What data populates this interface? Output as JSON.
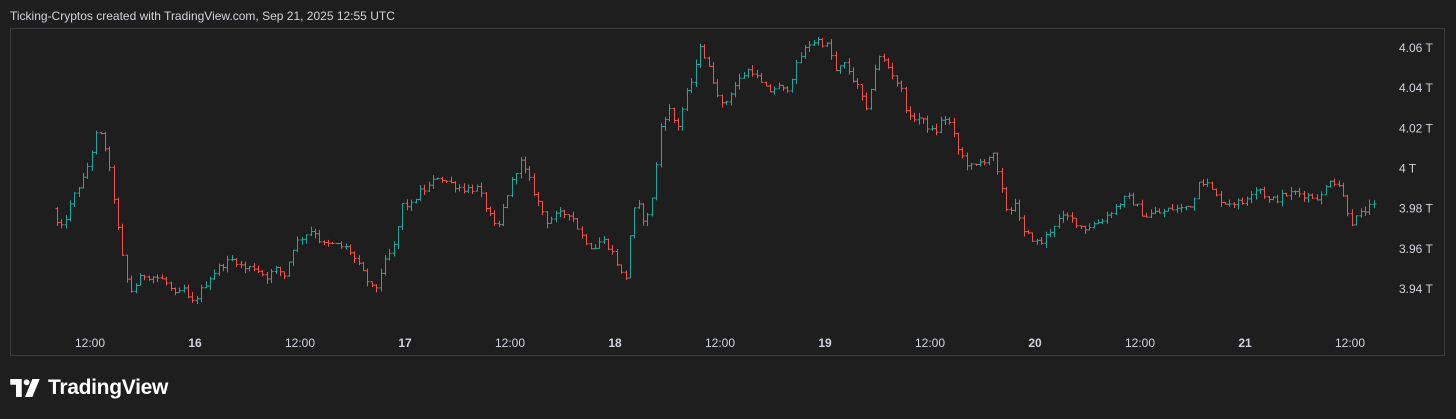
{
  "header": {
    "attribution": "Ticking-Cryptos created with TradingView.com, Sep 21, 2025 12:55 UTC"
  },
  "brand": {
    "name": "TradingView",
    "icon": "tradingview-logo-icon"
  },
  "colors": {
    "background": "#1e1e1e",
    "up": "#26a69a",
    "down": "#ef5350",
    "text": "#d1d4dc",
    "border": "#3a3a3a"
  },
  "chart_data": {
    "type": "ohlc",
    "unit": "T",
    "ylim": [
      3.925,
      4.07
    ],
    "y_ticks": [
      {
        "value": 4.06,
        "label": "4.06 T"
      },
      {
        "value": 4.04,
        "label": "4.04 T"
      },
      {
        "value": 4.02,
        "label": "4.02 T"
      },
      {
        "value": 4.0,
        "label": "4 T"
      },
      {
        "value": 3.98,
        "label": "3.98 T"
      },
      {
        "value": 3.96,
        "label": "3.96 T"
      },
      {
        "value": 3.94,
        "label": "3.94 T"
      }
    ],
    "x_start": "Sep 15 08:00",
    "x_end": "Sep 21 14:00",
    "x_ticks": [
      {
        "label": "12:00",
        "hours": 12,
        "bold": false
      },
      {
        "label": "16",
        "hours": 24,
        "bold": true
      },
      {
        "label": "12:00",
        "hours": 36,
        "bold": false
      },
      {
        "label": "17",
        "hours": 48,
        "bold": true
      },
      {
        "label": "12:00",
        "hours": 60,
        "bold": false
      },
      {
        "label": "18",
        "hours": 72,
        "bold": true
      },
      {
        "label": "12:00",
        "hours": 84,
        "bold": false
      },
      {
        "label": "19",
        "hours": 96,
        "bold": true
      },
      {
        "label": "12:00",
        "hours": 108,
        "bold": false
      },
      {
        "label": "20",
        "hours": 120,
        "bold": true
      },
      {
        "label": "12:00",
        "hours": 132,
        "bold": false
      },
      {
        "label": "21",
        "hours": 144,
        "bold": true
      },
      {
        "label": "12:00",
        "hours": 156,
        "bold": false
      }
    ],
    "bar_interval_hours": 0.5,
    "anchors": [
      [
        8.2,
        3.98
      ],
      [
        9.0,
        3.968
      ],
      [
        11.0,
        3.99
      ],
      [
        11.8,
        3.995
      ],
      [
        13.3,
        4.018
      ],
      [
        14.0,
        4.015
      ],
      [
        15.0,
        3.992
      ],
      [
        16.0,
        3.96
      ],
      [
        17.0,
        3.938
      ],
      [
        18.5,
        3.947
      ],
      [
        20.0,
        3.946
      ],
      [
        21.0,
        3.944
      ],
      [
        22.3,
        3.936
      ],
      [
        23.2,
        3.94
      ],
      [
        24.0,
        3.932
      ],
      [
        25.0,
        3.938
      ],
      [
        26.0,
        3.945
      ],
      [
        27.5,
        3.952
      ],
      [
        29.0,
        3.955
      ],
      [
        30.0,
        3.95
      ],
      [
        31.3,
        3.951
      ],
      [
        32.6,
        3.946
      ],
      [
        33.8,
        3.95
      ],
      [
        34.7,
        3.947
      ],
      [
        35.8,
        3.962
      ],
      [
        37.0,
        3.967
      ],
      [
        38.0,
        3.97
      ],
      [
        39.0,
        3.962
      ],
      [
        40.5,
        3.962
      ],
      [
        42.0,
        3.96
      ],
      [
        43.8,
        3.947
      ],
      [
        45.0,
        3.938
      ],
      [
        45.8,
        3.95
      ],
      [
        47.3,
        3.962
      ],
      [
        48.3,
        3.984
      ],
      [
        49.0,
        3.98
      ],
      [
        50.0,
        3.988
      ],
      [
        51.0,
        3.99
      ],
      [
        52.2,
        3.996
      ],
      [
        53.5,
        3.993
      ],
      [
        55.0,
        3.99
      ],
      [
        56.8,
        3.99
      ],
      [
        58.0,
        3.978
      ],
      [
        59.0,
        3.968
      ],
      [
        60.0,
        3.985
      ],
      [
        61.6,
        4.004
      ],
      [
        62.6,
        3.995
      ],
      [
        63.6,
        3.984
      ],
      [
        64.7,
        3.974
      ],
      [
        66.0,
        3.977
      ],
      [
        67.4,
        3.978
      ],
      [
        68.6,
        3.967
      ],
      [
        70.0,
        3.96
      ],
      [
        71.0,
        3.965
      ],
      [
        72.0,
        3.96
      ],
      [
        73.0,
        3.95
      ],
      [
        73.6,
        3.942
      ],
      [
        74.4,
        3.975
      ],
      [
        75.0,
        3.983
      ],
      [
        76.0,
        3.972
      ],
      [
        77.0,
        3.992
      ],
      [
        77.6,
        4.02
      ],
      [
        78.6,
        4.03
      ],
      [
        79.6,
        4.02
      ],
      [
        80.6,
        4.036
      ],
      [
        81.6,
        4.048
      ],
      [
        82.2,
        4.062
      ],
      [
        83.0,
        4.052
      ],
      [
        84.2,
        4.038
      ],
      [
        84.8,
        4.03
      ],
      [
        85.8,
        4.039
      ],
      [
        87.0,
        4.046
      ],
      [
        88.0,
        4.05
      ],
      [
        89.0,
        4.043
      ],
      [
        90.0,
        4.038
      ],
      [
        91.0,
        4.041
      ],
      [
        92.0,
        4.038
      ],
      [
        92.8,
        4.047
      ],
      [
        93.7,
        4.056
      ],
      [
        94.6,
        4.062
      ],
      [
        95.6,
        4.064
      ],
      [
        96.5,
        4.062
      ],
      [
        97.0,
        4.06
      ],
      [
        97.6,
        4.048
      ],
      [
        98.8,
        4.052
      ],
      [
        99.5,
        4.046
      ],
      [
        100.5,
        4.038
      ],
      [
        101.2,
        4.028
      ],
      [
        102.0,
        4.048
      ],
      [
        102.8,
        4.056
      ],
      [
        103.8,
        4.05
      ],
      [
        104.6,
        4.044
      ],
      [
        105.4,
        4.037
      ],
      [
        106.0,
        4.024
      ],
      [
        107.0,
        4.026
      ],
      [
        108.0,
        4.022
      ],
      [
        109.0,
        4.017
      ],
      [
        110.0,
        4.026
      ],
      [
        110.8,
        4.022
      ],
      [
        111.6,
        4.01
      ],
      [
        112.6,
        4.003
      ],
      [
        113.4,
        4.0
      ],
      [
        114.2,
        4.003
      ],
      [
        115.0,
        4.005
      ],
      [
        115.6,
        4.008
      ],
      [
        116.6,
        3.99
      ],
      [
        117.4,
        3.977
      ],
      [
        118.2,
        3.984
      ],
      [
        119.0,
        3.968
      ],
      [
        120.0,
        3.966
      ],
      [
        121.0,
        3.962
      ],
      [
        122.0,
        3.968
      ],
      [
        123.0,
        3.974
      ],
      [
        124.0,
        3.976
      ],
      [
        125.0,
        3.974
      ],
      [
        126.0,
        3.97
      ],
      [
        127.0,
        3.972
      ],
      [
        128.0,
        3.974
      ],
      [
        129.0,
        3.978
      ],
      [
        130.0,
        3.982
      ],
      [
        131.0,
        3.986
      ],
      [
        132.0,
        3.982
      ],
      [
        133.0,
        3.976
      ],
      [
        134.0,
        3.978
      ],
      [
        135.0,
        3.978
      ],
      [
        136.0,
        3.98
      ],
      [
        137.2,
        3.98
      ],
      [
        138.6,
        3.983
      ],
      [
        139.2,
        3.995
      ],
      [
        140.2,
        3.992
      ],
      [
        141.2,
        3.986
      ],
      [
        142.2,
        3.983
      ],
      [
        143.2,
        3.983
      ],
      [
        144.2,
        3.983
      ],
      [
        145.0,
        3.988
      ],
      [
        146.0,
        3.991
      ],
      [
        147.2,
        3.984
      ],
      [
        148.2,
        3.985
      ],
      [
        149.2,
        3.987
      ],
      [
        150.2,
        3.988
      ],
      [
        151.2,
        3.987
      ],
      [
        152.2,
        3.986
      ],
      [
        153.2,
        3.986
      ],
      [
        154.2,
        3.995
      ],
      [
        155.2,
        3.992
      ],
      [
        156.0,
        3.982
      ],
      [
        156.6,
        3.973
      ],
      [
        157.4,
        3.976
      ],
      [
        158.4,
        3.98
      ],
      [
        159.0,
        3.981
      ]
    ]
  }
}
